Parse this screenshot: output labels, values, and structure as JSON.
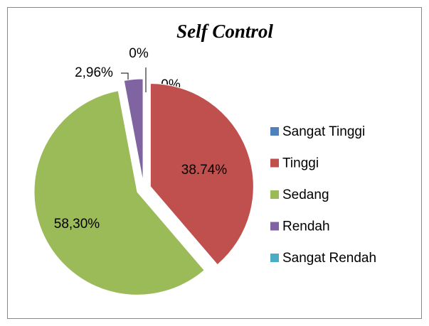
{
  "chart_data": {
    "type": "pie",
    "title": "Self Control",
    "categories": [
      "Sangat Tinggi",
      "Tinggi",
      "Sedang",
      "Rendah",
      "Sangat Rendah"
    ],
    "values": [
      0,
      38.74,
      58.3,
      2.96,
      0
    ],
    "value_labels": [
      "0%",
      "38.74%",
      "58,30%",
      "2,96%",
      "0%"
    ],
    "colors": [
      "#4f81bd",
      "#c0504d",
      "#9bbb59",
      "#8064a2",
      "#4bacc6"
    ],
    "legend": "right"
  }
}
